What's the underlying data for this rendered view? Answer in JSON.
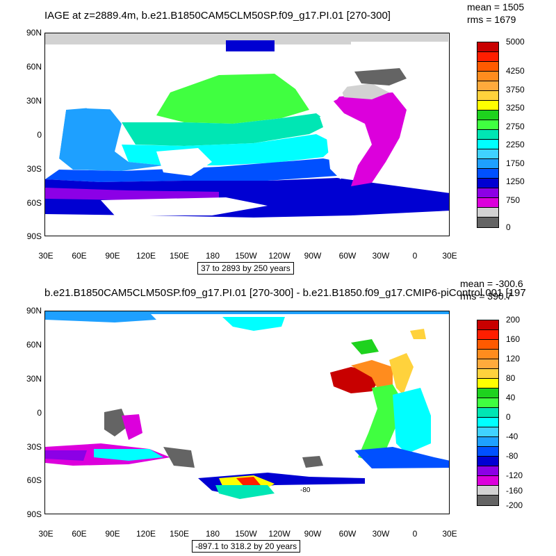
{
  "panel1": {
    "title": "IAGE at z=2889.4m, b.e21.B1850CAM5CLM50SP.f09_g17.PI.01 [270-300]",
    "mean": "mean = 1505",
    "rms": "rms = 1679",
    "subtitle": "37 to 2893 by 250 years",
    "lat_labels": [
      "90N",
      "60N",
      "30N",
      "0",
      "30S",
      "60S",
      "90S"
    ],
    "lon_labels": [
      "30E",
      "60E",
      "90E",
      "120E",
      "150E",
      "180",
      "150W",
      "120W",
      "90W",
      "60W",
      "30W",
      "0",
      "30E"
    ],
    "legend_labels": [
      "5000",
      "4250",
      "3750",
      "3250",
      "2750",
      "2250",
      "1750",
      "1250",
      "750",
      "0"
    ],
    "legend_colors": [
      "#c80000",
      "#ff1e00",
      "#ff5a00",
      "#ff8c1e",
      "#ffaa3c",
      "#ffd23c",
      "#ffff00",
      "#1ed21e",
      "#40ff40",
      "#00e6b4",
      "#00ffff",
      "#40d2ff",
      "#1ea0ff",
      "#0050ff",
      "#0000d2",
      "#8c00e6",
      "#dc00dc",
      "#d2d2d2",
      "#646464"
    ]
  },
  "panel2": {
    "title": "b.e21.B1850CAM5CLM50SP.f09_g17.PI.01 [270-300] - b.e21.B1850.f09_g17.CMIP6-piControl.001 [197",
    "mean": "mean = -300.6",
    "rms": "rms = 390.7",
    "subtitle": "-897.1 to 318.2 by 20 years",
    "contour_label": "-80",
    "lat_labels": [
      "90N",
      "60N",
      "30N",
      "0",
      "30S",
      "60S",
      "90S"
    ],
    "lon_labels": [
      "30E",
      "60E",
      "90E",
      "120E",
      "150E",
      "180",
      "150W",
      "120W",
      "90W",
      "60W",
      "30W",
      "0",
      "30E"
    ],
    "legend_labels": [
      "200",
      "160",
      "120",
      "80",
      "40",
      "0",
      "-40",
      "-80",
      "-120",
      "-160",
      "-200"
    ],
    "legend_colors": [
      "#c80000",
      "#ff1e00",
      "#ff5a00",
      "#ff8c1e",
      "#ffaa3c",
      "#ffd23c",
      "#ffff00",
      "#1ed21e",
      "#40ff40",
      "#00e6b4",
      "#00ffff",
      "#40d2ff",
      "#1ea0ff",
      "#0050ff",
      "#0000d2",
      "#8c00e6",
      "#dc00dc",
      "#d2d2d2",
      "#646464"
    ]
  }
}
